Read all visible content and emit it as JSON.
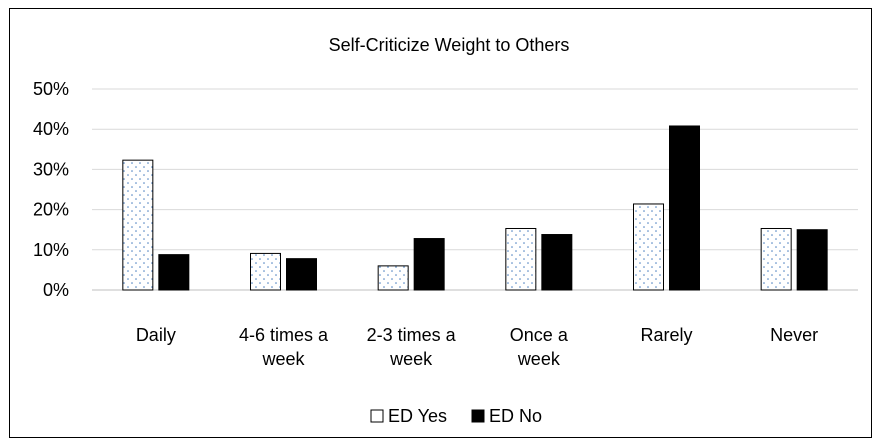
{
  "chart_data": {
    "type": "bar",
    "title": "Self-Criticize Weight to Others",
    "xlabel": "",
    "ylabel": "",
    "ylim": [
      0,
      50
    ],
    "y_ticks": [
      "0%",
      "10%",
      "20%",
      "30%",
      "40%",
      "50%"
    ],
    "y_tick_values": [
      0,
      10,
      20,
      30,
      40,
      50
    ],
    "grid": true,
    "legend_position": "bottom",
    "categories": [
      [
        "Daily"
      ],
      [
        "4-6 times a",
        "week"
      ],
      [
        "2-3 times a",
        "week"
      ],
      [
        "Once a",
        "week"
      ],
      [
        "Rarely"
      ],
      [
        "Never"
      ]
    ],
    "series": [
      {
        "name": "ED Yes",
        "values": [
          32.3,
          9.1,
          6.0,
          15.3,
          21.4,
          15.3
        ],
        "pattern": "dotted",
        "fill": "#ffffff",
        "dot_color": "#4a7fbf"
      },
      {
        "name": "ED No",
        "values": [
          8.8,
          7.8,
          12.8,
          13.8,
          40.8,
          15.0
        ],
        "pattern": "solid",
        "fill": "#000000"
      }
    ],
    "gridline_color": "#d9d9d9"
  }
}
